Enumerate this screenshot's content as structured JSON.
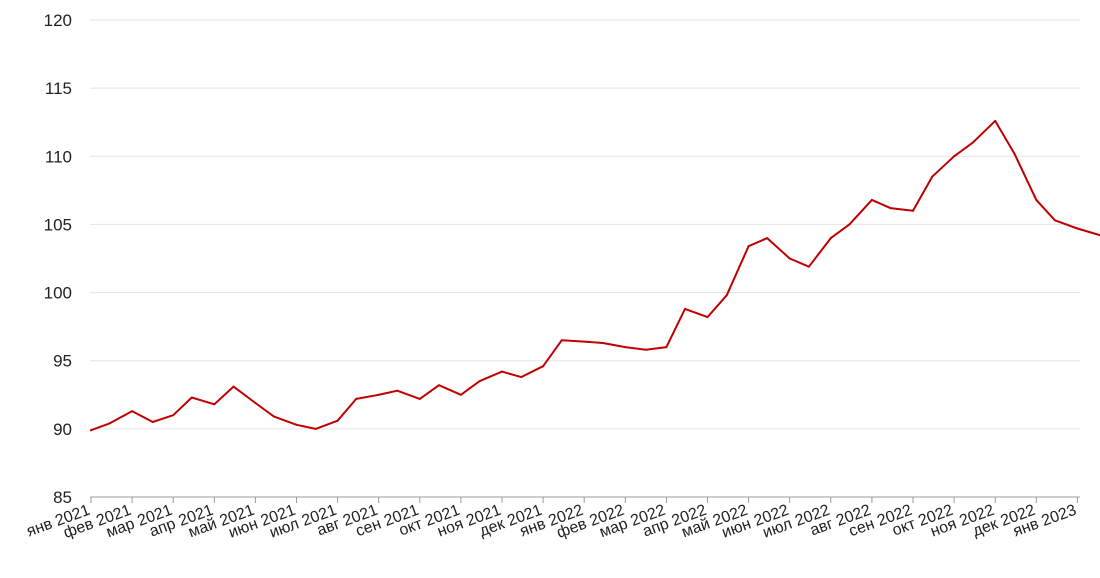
{
  "chart_data": {
    "type": "line",
    "title": "",
    "xlabel": "",
    "ylabel": "",
    "ylim": [
      85,
      120
    ],
    "yticks": [
      85,
      90,
      95,
      100,
      105,
      110,
      115,
      120
    ],
    "grid": true,
    "legend": "none",
    "x_tick_labels": [
      "янв 2021",
      "фев 2021",
      "мар 2021",
      "апр 2021",
      "май 2021",
      "июн 2021",
      "июл 2021",
      "авг 2021",
      "сен 2021",
      "окт 2021",
      "ноя 2021",
      "дек 2021",
      "янв 2022",
      "фев 2022",
      "мар 2022",
      "апр 2022",
      "май 2022",
      "июн 2022",
      "июл 2022",
      "авг 2022",
      "сен 2022",
      "окт 2022",
      "ноя 2022",
      "дек 2022",
      "янв 2023"
    ],
    "series": [
      {
        "color": "#c00000",
        "x": [
          "2021-01-01",
          "2021-01-15",
          "2021-02-01",
          "2021-02-15",
          "2021-03-01",
          "2021-03-15",
          "2021-04-01",
          "2021-04-15",
          "2021-05-01",
          "2021-05-15",
          "2021-06-01",
          "2021-06-15",
          "2021-07-01",
          "2021-07-15",
          "2021-08-01",
          "2021-08-15",
          "2021-09-01",
          "2021-09-15",
          "2021-10-01",
          "2021-10-15",
          "2021-11-01",
          "2021-11-15",
          "2021-12-01",
          "2021-12-15",
          "2022-01-01",
          "2022-01-15",
          "2022-02-01",
          "2022-02-15",
          "2022-03-01",
          "2022-03-15",
          "2022-04-01",
          "2022-04-15",
          "2022-05-01",
          "2022-05-15",
          "2022-06-01",
          "2022-06-15",
          "2022-07-01",
          "2022-07-15",
          "2022-08-01",
          "2022-08-15",
          "2022-09-01",
          "2022-09-15",
          "2022-10-01",
          "2022-10-15",
          "2022-11-01",
          "2022-11-15",
          "2022-12-01",
          "2022-12-15",
          "2023-01-01",
          "2023-01-15",
          "2023-01-22"
        ],
        "y": [
          89.9,
          90.4,
          91.3,
          90.5,
          91.0,
          92.3,
          91.8,
          93.1,
          91.9,
          90.9,
          90.3,
          90.0,
          90.6,
          92.2,
          92.5,
          92.8,
          92.2,
          93.2,
          92.5,
          93.5,
          94.2,
          93.8,
          94.6,
          96.5,
          96.4,
          96.3,
          96.0,
          95.8,
          96.0,
          98.8,
          98.2,
          99.8,
          103.4,
          104.0,
          102.5,
          101.9,
          104.0,
          105.0,
          106.8,
          106.2,
          106.0,
          108.5,
          110.0,
          111.0,
          112.6,
          110.2,
          106.8,
          105.3,
          104.7,
          104.3,
          104.1
        ]
      }
    ]
  }
}
